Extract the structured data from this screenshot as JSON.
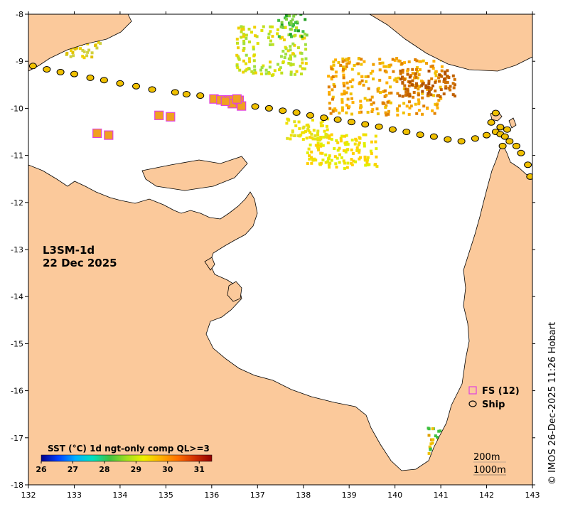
{
  "map": {
    "title_line1": "L3SM-1d",
    "title_line2": "22 Dec 2025",
    "x_ticks": [
      "132",
      "133",
      "134",
      "135",
      "136",
      "137",
      "138",
      "139",
      "140",
      "141",
      "142",
      "143"
    ],
    "y_ticks": [
      "-8",
      "-9",
      "-10",
      "-11",
      "-12",
      "-13",
      "-14",
      "-15",
      "-16",
      "-17",
      "-18"
    ],
    "lon_range": [
      132,
      143
    ],
    "lat_range": [
      -18,
      -8
    ],
    "land_color": "#fbc99b",
    "sea_color": "#ffffff",
    "legend": {
      "fs_label": "FS (12)",
      "ship_label": "Ship",
      "fs_color": "#e040e0"
    },
    "colorbar": {
      "title": "SST (°C) 1d ngt-only comp QL>=3",
      "ticks": [
        "26",
        "27",
        "28",
        "29",
        "30",
        "31"
      ],
      "range": [
        26,
        31.4
      ],
      "colors": [
        "#00008b",
        "#0040ff",
        "#00b0ff",
        "#00e0c0",
        "#40c040",
        "#a0e020",
        "#f0f000",
        "#ffb000",
        "#ff7000",
        "#d03000",
        "#900000"
      ]
    },
    "depth_labels": [
      "200m",
      "1000m"
    ],
    "credit": "© IMOS 26-Dec-2025 11:26 Hobart"
  },
  "chart_data": {
    "type": "scatter",
    "title": "L3SM-1d 22 Dec 2025",
    "xlim": [
      132,
      143
    ],
    "ylim": [
      -18,
      -8
    ],
    "series": [
      {
        "name": "Ship",
        "marker": "ellipse",
        "points": [
          [
            132.1,
            -9.1
          ],
          [
            132.4,
            -9.17
          ],
          [
            132.7,
            -9.23
          ],
          [
            133.0,
            -9.27
          ],
          [
            133.35,
            -9.35
          ],
          [
            133.65,
            -9.4
          ],
          [
            134.0,
            -9.47
          ],
          [
            134.35,
            -9.53
          ],
          [
            134.7,
            -9.6
          ],
          [
            135.2,
            -9.66
          ],
          [
            135.45,
            -9.7
          ],
          [
            135.75,
            -9.73
          ],
          [
            136.05,
            -9.78
          ],
          [
            136.3,
            -9.81
          ],
          [
            136.5,
            -9.87
          ],
          [
            136.65,
            -9.92
          ],
          [
            136.95,
            -9.96
          ],
          [
            137.25,
            -10.0
          ],
          [
            137.55,
            -10.05
          ],
          [
            137.85,
            -10.09
          ],
          [
            138.15,
            -10.15
          ],
          [
            138.45,
            -10.2
          ],
          [
            138.75,
            -10.24
          ],
          [
            139.05,
            -10.29
          ],
          [
            139.35,
            -10.34
          ],
          [
            139.65,
            -10.39
          ],
          [
            139.95,
            -10.45
          ],
          [
            140.25,
            -10.5
          ],
          [
            140.55,
            -10.56
          ],
          [
            140.85,
            -10.6
          ],
          [
            141.15,
            -10.66
          ],
          [
            141.45,
            -10.7
          ],
          [
            141.75,
            -10.64
          ],
          [
            142.0,
            -10.57
          ],
          [
            142.2,
            -10.5
          ],
          [
            142.3,
            -10.55
          ],
          [
            142.4,
            -10.6
          ],
          [
            142.35,
            -10.8
          ],
          [
            142.5,
            -10.7
          ],
          [
            142.65,
            -10.8
          ],
          [
            142.75,
            -10.95
          ],
          [
            142.9,
            -11.2
          ],
          [
            142.95,
            -11.45
          ],
          [
            142.3,
            -10.4
          ],
          [
            142.45,
            -10.45
          ],
          [
            142.2,
            -10.1
          ],
          [
            142.1,
            -10.3
          ]
        ]
      },
      {
        "name": "FS (12)",
        "marker": "square",
        "points": [
          [
            133.5,
            -10.53
          ],
          [
            133.75,
            -10.57
          ],
          [
            134.85,
            -10.15
          ],
          [
            135.1,
            -10.18
          ],
          [
            136.05,
            -9.8
          ],
          [
            136.2,
            -9.82
          ],
          [
            136.4,
            -9.82
          ],
          [
            136.45,
            -9.9
          ],
          [
            136.6,
            -9.83
          ],
          [
            136.65,
            -9.95
          ],
          [
            136.3,
            -9.85
          ],
          [
            136.55,
            -9.8
          ]
        ]
      }
    ]
  }
}
